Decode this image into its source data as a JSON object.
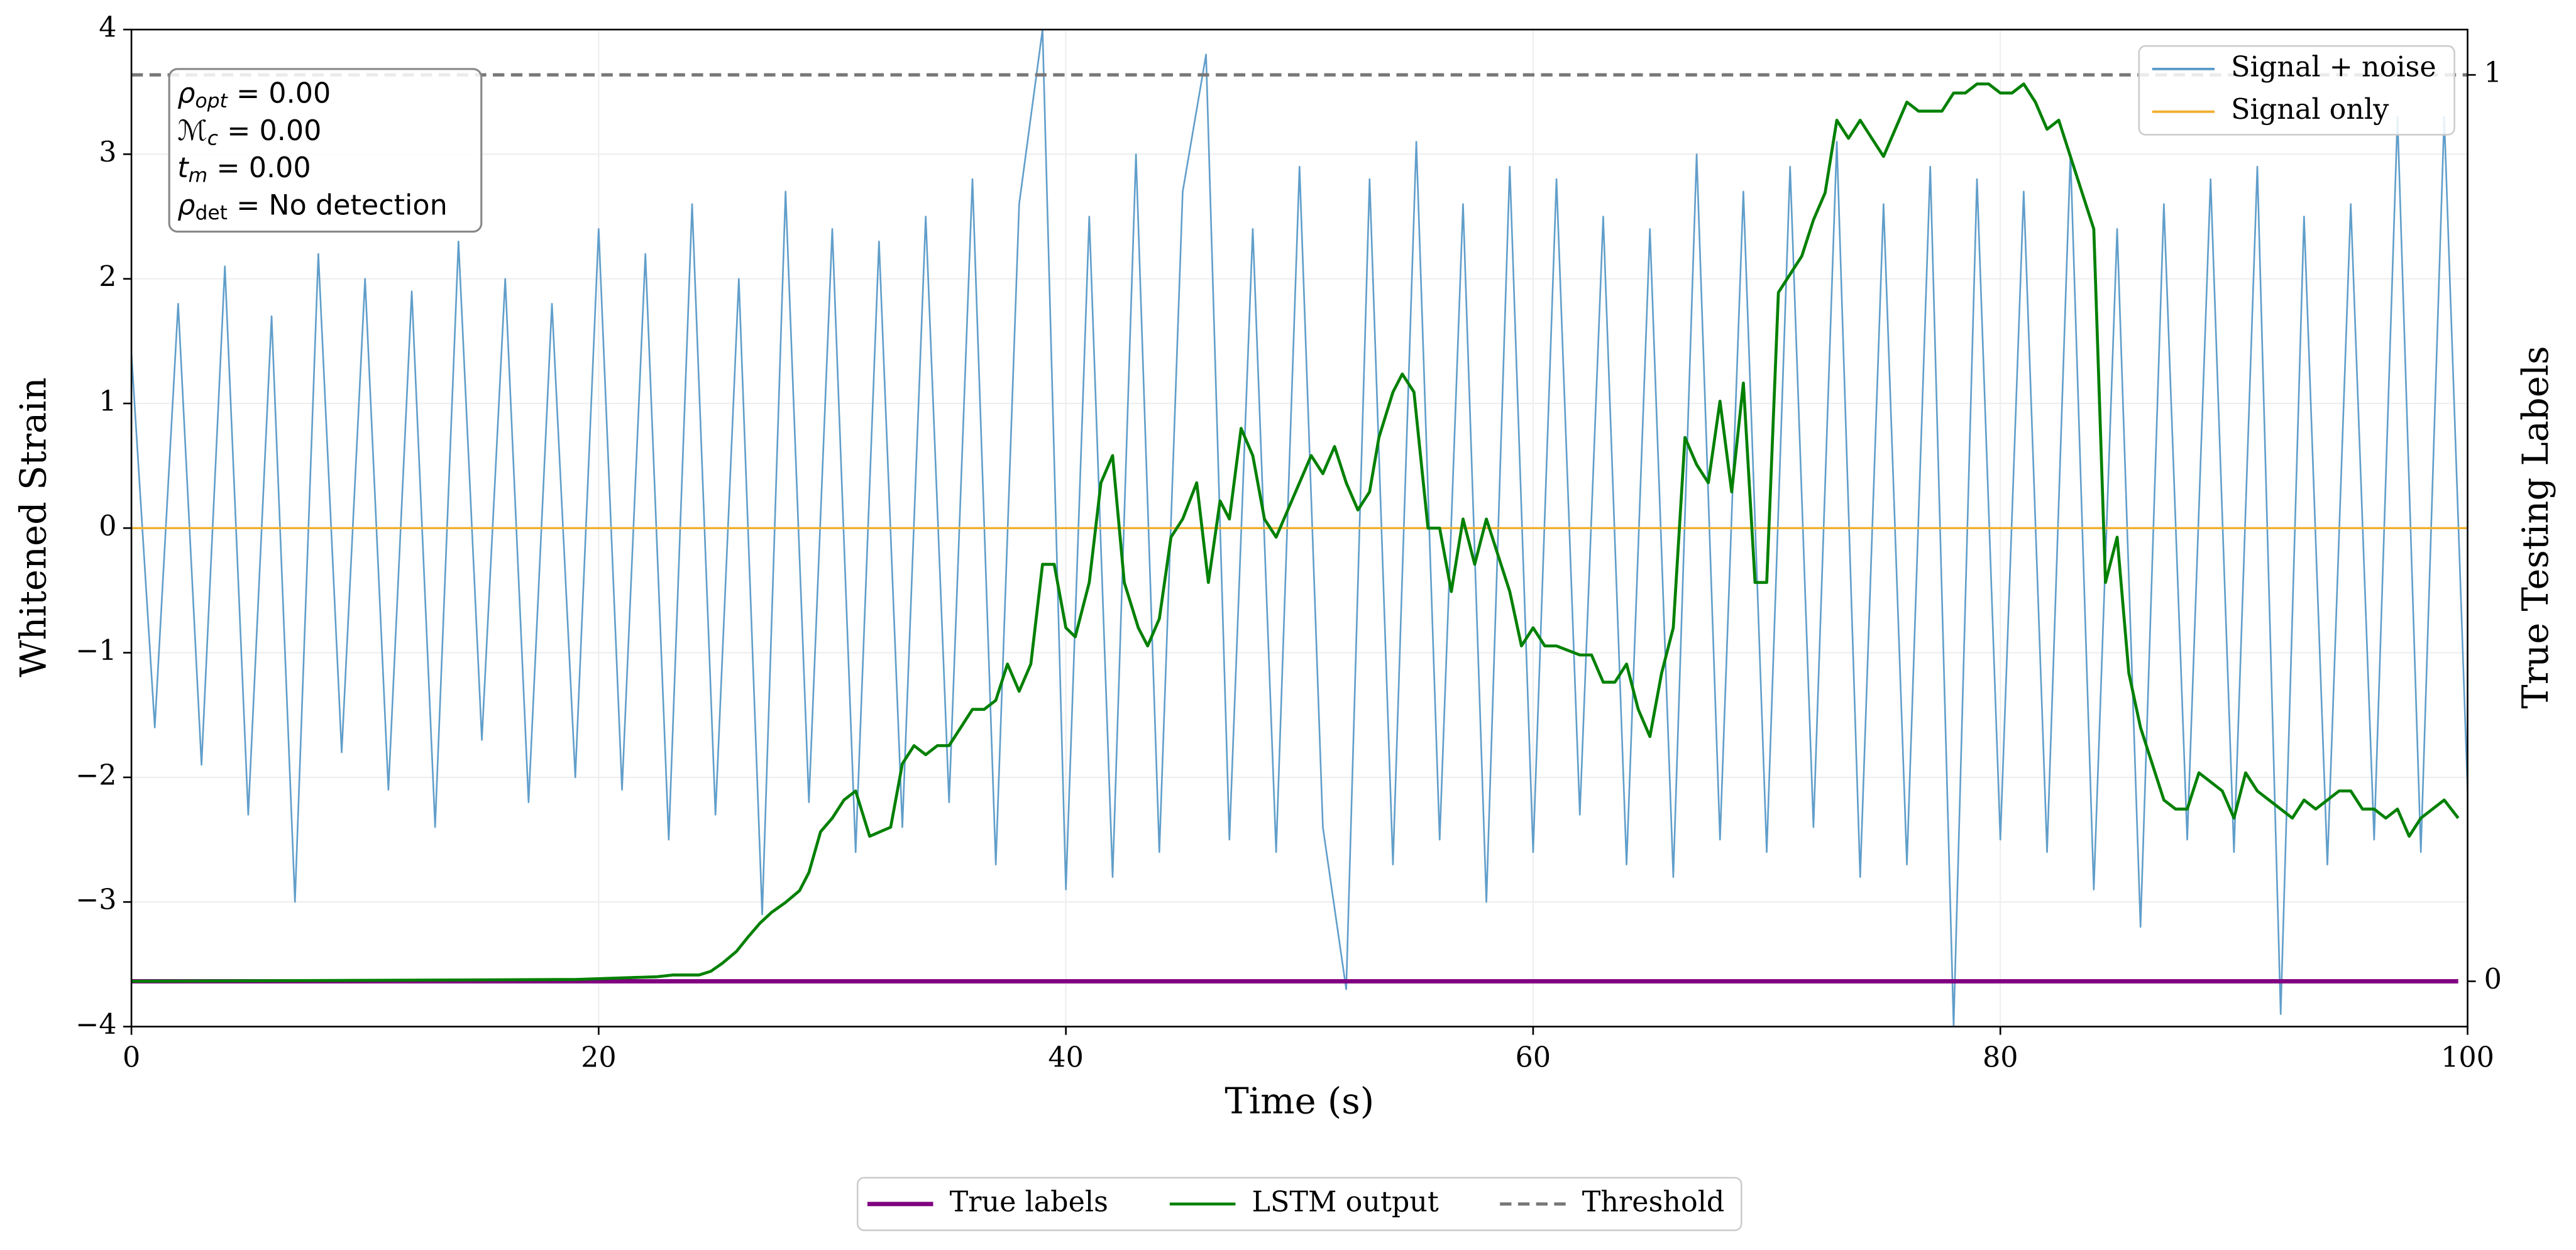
{
  "chart_data": {
    "type": "line",
    "xlabel": "Time (s)",
    "ylabel": "Whitened Strain",
    "y2label": "True Testing Labels",
    "xlim": [
      0,
      100
    ],
    "ylim": [
      -4,
      4
    ],
    "y2lim": [
      -0.05,
      1.05
    ],
    "xticks": [
      0,
      20,
      40,
      60,
      80,
      100
    ],
    "yticks": [
      {
        "value": -4,
        "label": "−4"
      },
      {
        "value": -3,
        "label": "−3"
      },
      {
        "value": -2,
        "label": "−2"
      },
      {
        "value": -1,
        "label": "−1"
      },
      0,
      1,
      2,
      3,
      4
    ],
    "y2ticks": [
      0,
      1
    ],
    "grid": true,
    "annotations": [
      {
        "symbol": "ρ",
        "subscript": "opt",
        "text": " = 0.00"
      },
      {
        "symbol": "ℳ",
        "subscript": "c",
        "text": " = 0.00"
      },
      {
        "symbol": "t",
        "subscript": "m",
        "text": " = 0.00"
      },
      {
        "symbol": "ρ",
        "subscript": "det",
        "text": " = No detection"
      }
    ],
    "series": [
      {
        "name": "Signal + noise",
        "color": "#5799c7",
        "legend": "upper right",
        "axis": "y",
        "x": [
          0,
          1,
          2,
          3,
          4,
          5,
          6,
          7,
          8,
          9,
          10,
          11,
          12,
          13,
          14,
          15,
          16,
          17,
          18,
          19,
          20,
          21,
          22,
          23,
          24,
          25,
          26,
          27,
          28,
          29,
          30,
          31,
          32,
          33,
          34,
          35,
          36,
          37,
          38,
          39,
          40,
          41,
          42,
          43,
          44,
          45,
          46,
          47,
          48,
          49,
          50,
          51,
          52,
          53,
          54,
          55,
          56,
          57,
          58,
          59,
          60,
          61,
          62,
          63,
          64,
          65,
          66,
          67,
          68,
          69,
          70,
          71,
          72,
          73,
          74,
          75,
          76,
          77,
          78,
          79,
          80,
          81,
          82,
          83,
          84,
          85,
          86,
          87,
          88,
          89,
          90,
          91,
          92,
          93,
          94,
          95,
          96,
          97,
          98,
          99,
          100
        ],
        "values": [
          1.4,
          -1.6,
          1.8,
          -1.9,
          2.1,
          -2.3,
          1.7,
          -3.0,
          2.2,
          -1.8,
          2.0,
          -2.1,
          1.9,
          -2.4,
          2.3,
          -1.7,
          2.0,
          -2.2,
          1.8,
          -2.0,
          2.4,
          -2.1,
          2.2,
          -2.5,
          2.6,
          -2.3,
          2.0,
          -3.1,
          2.7,
          -2.2,
          2.4,
          -2.6,
          2.3,
          -2.4,
          2.5,
          -2.2,
          2.8,
          -2.7,
          2.6,
          4.0,
          -2.9,
          2.5,
          -2.8,
          3.0,
          -2.6,
          2.7,
          3.8,
          -2.5,
          2.4,
          -2.6,
          2.9,
          -2.4,
          -3.7,
          2.8,
          -2.7,
          3.1,
          -2.5,
          2.6,
          -3.0,
          2.9,
          -2.6,
          2.8,
          -2.3,
          2.5,
          -2.7,
          2.4,
          -2.8,
          3.0,
          -2.5,
          2.7,
          -2.6,
          2.9,
          -2.4,
          3.1,
          -2.8,
          2.6,
          -2.7,
          2.9,
          -4.0,
          2.8,
          -2.5,
          2.7,
          -2.6,
          3.0,
          -2.9,
          2.4,
          -3.2,
          2.6,
          -2.5,
          2.8,
          -2.6,
          2.9,
          -3.9,
          2.5,
          -2.7,
          2.6,
          -2.5,
          3.3,
          -2.6,
          3.3,
          -2.1
        ]
      },
      {
        "name": "Signal only",
        "color": "#f0b030",
        "legend": "upper right",
        "axis": "y",
        "x": [
          0,
          100
        ],
        "values": [
          0,
          0
        ]
      },
      {
        "name": "True labels",
        "color": "#800080",
        "legend": "below",
        "axis": "y2",
        "x": [
          0,
          99.6
        ],
        "values": [
          0,
          0
        ]
      },
      {
        "name": "LSTM output",
        "color": "#008000",
        "legend": "below",
        "axis": "y2",
        "x": [
          0,
          19,
          22.5,
          23.2,
          24.3,
          24.8,
          25.3,
          25.9,
          26.4,
          26.9,
          27.4,
          28,
          28.6,
          29,
          29.5,
          30,
          30.5,
          31,
          31.6,
          32.5,
          33,
          33.5,
          34,
          34.5,
          35,
          35.5,
          36,
          36.5,
          37,
          37.5,
          38,
          38.5,
          39,
          39.5,
          40,
          40.4,
          41,
          41.5,
          42,
          42.5,
          43.1,
          43.5,
          44,
          44.5,
          45,
          45.6,
          46.1,
          46.6,
          47,
          47.5,
          48,
          48.5,
          49,
          49.5,
          50,
          50.5,
          51,
          51.5,
          52,
          52.5,
          53,
          53.4,
          54,
          54.4,
          54.9,
          55.5,
          56,
          56.5,
          57,
          57.5,
          58,
          58.5,
          59,
          59.5,
          60,
          60.5,
          61,
          62,
          62.5,
          63,
          63.5,
          64,
          64.5,
          65,
          65.5,
          66,
          66.5,
          67,
          67.5,
          68,
          68.5,
          69,
          69.5,
          70,
          70.5,
          71,
          71.5,
          72,
          72.5,
          73,
          73.5,
          74,
          74.5,
          75,
          75.5,
          76,
          76.5,
          77,
          77.5,
          78,
          78.5,
          79,
          79.5,
          80,
          80.5,
          81,
          81.5,
          82,
          82.5,
          83,
          83.5,
          84,
          84.5,
          85,
          85.5,
          86,
          86.5,
          87,
          87.5,
          88,
          88.5,
          89,
          89.5,
          90,
          90.5,
          91,
          91.5,
          92,
          92.5,
          93,
          93.5,
          94,
          94.5,
          95,
          95.5,
          96,
          96.5,
          97,
          97.5,
          98,
          98.5,
          99,
          99.6
        ],
        "values": [
          0,
          0.002,
          0.005,
          0.007,
          0.007,
          0.011,
          0.02,
          0.033,
          0.049,
          0.064,
          0.076,
          0.087,
          0.1,
          0.12,
          0.165,
          0.18,
          0.2,
          0.21,
          0.16,
          0.17,
          0.24,
          0.26,
          0.25,
          0.26,
          0.26,
          0.28,
          0.3,
          0.3,
          0.31,
          0.35,
          0.32,
          0.35,
          0.46,
          0.46,
          0.39,
          0.38,
          0.44,
          0.55,
          0.58,
          0.44,
          0.39,
          0.37,
          0.4,
          0.49,
          0.51,
          0.55,
          0.44,
          0.53,
          0.51,
          0.61,
          0.58,
          0.51,
          0.49,
          0.52,
          0.55,
          0.58,
          0.56,
          0.59,
          0.55,
          0.52,
          0.54,
          0.6,
          0.65,
          0.67,
          0.65,
          0.5,
          0.5,
          0.43,
          0.51,
          0.46,
          0.51,
          0.47,
          0.43,
          0.37,
          0.39,
          0.37,
          0.37,
          0.36,
          0.36,
          0.33,
          0.33,
          0.35,
          0.3,
          0.27,
          0.34,
          0.39,
          0.6,
          0.57,
          0.55,
          0.64,
          0.54,
          0.66,
          0.44,
          0.44,
          0.76,
          0.78,
          0.8,
          0.84,
          0.87,
          0.95,
          0.93,
          0.95,
          0.93,
          0.91,
          0.94,
          0.97,
          0.96,
          0.96,
          0.96,
          0.98,
          0.98,
          0.99,
          0.99,
          0.98,
          0.98,
          0.99,
          0.97,
          0.94,
          0.95,
          0.91,
          0.87,
          0.83,
          0.44,
          0.49,
          0.34,
          0.28,
          0.24,
          0.2,
          0.19,
          0.19,
          0.23,
          0.22,
          0.21,
          0.18,
          0.23,
          0.21,
          0.2,
          0.19,
          0.18,
          0.2,
          0.19,
          0.2,
          0.21,
          0.21,
          0.19,
          0.19,
          0.18,
          0.19,
          0.16,
          0.18,
          0.19,
          0.2,
          0.18
        ]
      },
      {
        "name": "Threshold",
        "color": "#777777",
        "legend": "below",
        "axis": "y2",
        "style": "dashed",
        "x": [
          0,
          100
        ],
        "values": [
          1,
          1
        ]
      }
    ]
  }
}
